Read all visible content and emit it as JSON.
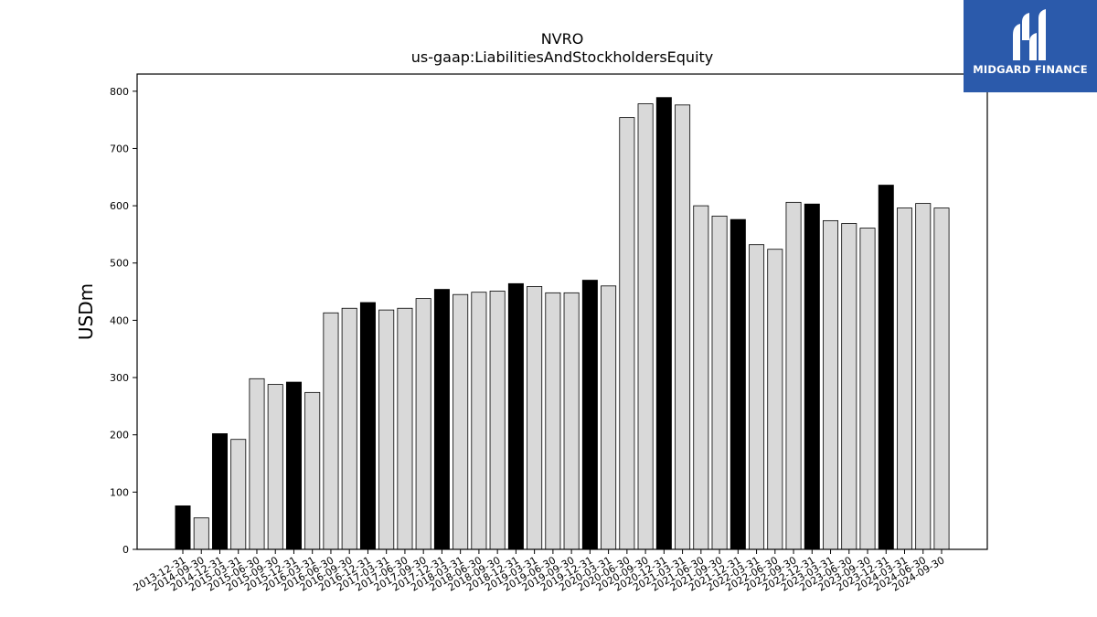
{
  "chart_data": {
    "type": "bar",
    "title": "NVRO",
    "subtitle": "us-gaap:LiabilitiesAndStockholdersEquity",
    "ylabel": "USDm",
    "xlabel": "",
    "ylim": [
      0,
      830
    ],
    "yticks": [
      0,
      100,
      200,
      300,
      400,
      500,
      600,
      700,
      800
    ],
    "grid": false,
    "colors": {
      "highlight": "#000000",
      "normal": "#d9d9d9",
      "edge": "#000000"
    },
    "categories": [
      "2013-12-31",
      "2014-09-30",
      "2014-12-31",
      "2015-03-31",
      "2015-06-30",
      "2015-09-30",
      "2015-12-31",
      "2016-03-31",
      "2016-06-30",
      "2016-09-30",
      "2016-12-31",
      "2017-03-31",
      "2017-06-30",
      "2017-09-30",
      "2017-12-31",
      "2018-03-31",
      "2018-06-30",
      "2018-09-30",
      "2018-12-31",
      "2019-03-31",
      "2019-06-30",
      "2019-09-30",
      "2019-12-31",
      "2020-03-31",
      "2020-06-30",
      "2020-09-30",
      "2020-12-31",
      "2021-03-31",
      "2021-06-30",
      "2021-09-30",
      "2021-12-31",
      "2022-03-31",
      "2022-06-30",
      "2022-09-30",
      "2022-12-31",
      "2023-03-31",
      "2023-06-30",
      "2023-09-30",
      "2023-12-31",
      "2024-03-31",
      "2024-06-30",
      "2024-09-30"
    ],
    "values": [
      76,
      55,
      202,
      192,
      298,
      288,
      292,
      274,
      413,
      421,
      431,
      418,
      421,
      438,
      454,
      445,
      449,
      451,
      464,
      459,
      448,
      448,
      470,
      460,
      754,
      778,
      789,
      776,
      600,
      582,
      576,
      532,
      524,
      606,
      603,
      574,
      569,
      561,
      636,
      596,
      604,
      596
    ],
    "highlight": [
      true,
      false,
      true,
      false,
      false,
      false,
      true,
      false,
      false,
      false,
      true,
      false,
      false,
      false,
      true,
      false,
      false,
      false,
      true,
      false,
      false,
      false,
      true,
      false,
      false,
      false,
      true,
      false,
      false,
      false,
      true,
      false,
      false,
      false,
      true,
      false,
      false,
      false,
      true,
      false,
      false,
      false
    ]
  },
  "logo": {
    "text": "MIDGARD FINANCE"
  }
}
